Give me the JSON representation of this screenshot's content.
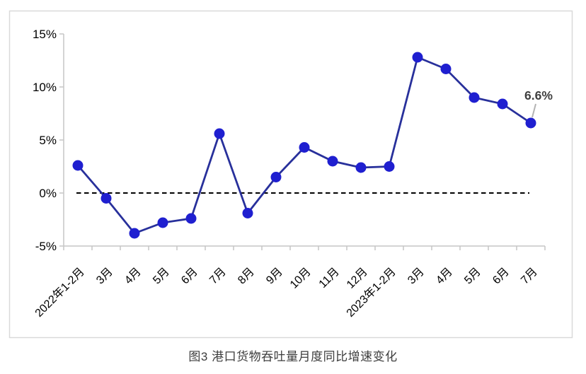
{
  "figure": {
    "caption": "图3 港口货物吞吐量月度同比增速变化"
  },
  "chart_data": {
    "type": "line",
    "title": "图3 港口货物吞吐量月度同比增速变化",
    "xlabel": "",
    "ylabel": "",
    "categories": [
      "2022年1-2月",
      "3月",
      "4月",
      "5月",
      "6月",
      "7月",
      "8月",
      "9月",
      "10月",
      "11月",
      "12月",
      "2023年1-2月",
      "3月",
      "4月",
      "5月",
      "6月",
      "7月"
    ],
    "values": [
      2.6,
      -0.5,
      -3.8,
      -2.8,
      -2.4,
      5.6,
      -1.9,
      1.5,
      4.3,
      3.0,
      2.4,
      2.5,
      12.8,
      11.7,
      9.0,
      8.4,
      6.6
    ],
    "unit": "%",
    "y_ticks": [
      "15%",
      "10%",
      "5%",
      "0%",
      "-5%"
    ],
    "y_tick_values": [
      15,
      10,
      5,
      0,
      -5
    ],
    "ylim": [
      -5,
      15
    ],
    "grid": false,
    "legend": "none",
    "zero_baseline": {
      "style": "dashed",
      "color": "#000000"
    },
    "annotation": {
      "text": "6.6%",
      "index": 16
    },
    "colors": {
      "line": "#28309b",
      "marker": "#1f1fd0",
      "axis": "#c6c6c6",
      "tick_text": "#000000",
      "zero_line": "#000000",
      "annotation_text": "#404040",
      "leader": "#b3b3b3",
      "frame_border": "#d9d9d9",
      "caption_text": "#3d3d3d"
    }
  }
}
